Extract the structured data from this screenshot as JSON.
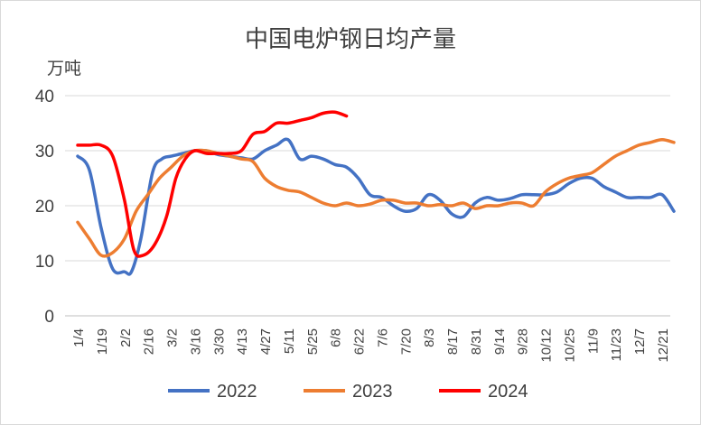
{
  "chart_data": {
    "type": "line",
    "title": "中国电炉钢日均产量",
    "ylabel": "万吨",
    "xlabel": "",
    "ylim": [
      0,
      40
    ],
    "yticks": [
      0,
      10,
      20,
      30,
      40
    ],
    "grid": "horizontal",
    "legend_position": "bottom",
    "categories": [
      "1/4",
      "1/19",
      "2/2",
      "2/16",
      "3/2",
      "3/16",
      "3/30",
      "4/13",
      "4/27",
      "5/11",
      "5/25",
      "6/8",
      "6/22",
      "7/6",
      "7/20",
      "8/3",
      "8/17",
      "8/31",
      "9/14",
      "9/28",
      "10/12",
      "10/25",
      "11/9",
      "11/23",
      "12/7",
      "12/21"
    ],
    "series": [
      {
        "name": "2022",
        "color": "#4472C4",
        "points": [
          [
            0,
            29
          ],
          [
            0.5,
            26.5
          ],
          [
            1,
            16
          ],
          [
            1.5,
            8.5
          ],
          [
            2,
            8
          ],
          [
            2.3,
            8
          ],
          [
            2.7,
            14
          ],
          [
            3.2,
            26
          ],
          [
            3.6,
            28.5
          ],
          [
            4,
            29
          ],
          [
            4.5,
            29.5
          ],
          [
            5,
            30
          ],
          [
            5.5,
            30
          ],
          [
            6,
            29.3
          ],
          [
            6.5,
            29
          ],
          [
            7,
            28.7
          ],
          [
            7.5,
            28.5
          ],
          [
            8,
            30
          ],
          [
            8.5,
            31
          ],
          [
            9,
            32
          ],
          [
            9.5,
            28.5
          ],
          [
            10,
            29
          ],
          [
            10.5,
            28.5
          ],
          [
            11,
            27.5
          ],
          [
            11.5,
            27
          ],
          [
            12,
            25
          ],
          [
            12.5,
            22
          ],
          [
            13,
            21.5
          ],
          [
            13.5,
            20
          ],
          [
            14,
            19
          ],
          [
            14.5,
            19.5
          ],
          [
            15,
            22
          ],
          [
            15.5,
            21
          ],
          [
            16,
            18.5
          ],
          [
            16.5,
            18
          ],
          [
            17,
            20.5
          ],
          [
            17.5,
            21.5
          ],
          [
            18,
            21
          ],
          [
            18.5,
            21.3
          ],
          [
            19,
            22
          ],
          [
            19.5,
            22
          ],
          [
            20,
            22
          ],
          [
            20.5,
            22.5
          ],
          [
            21,
            24
          ],
          [
            21.5,
            25
          ],
          [
            22,
            25
          ],
          [
            22.5,
            23.5
          ],
          [
            23,
            22.5
          ],
          [
            23.5,
            21.5
          ],
          [
            24,
            21.5
          ],
          [
            24.5,
            21.5
          ],
          [
            25,
            22
          ],
          [
            25.5,
            19
          ]
        ]
      },
      {
        "name": "2023",
        "color": "#ED7D31",
        "points": [
          [
            0,
            17
          ],
          [
            0.5,
            14
          ],
          [
            1,
            11
          ],
          [
            1.5,
            11.5
          ],
          [
            2,
            14
          ],
          [
            2.5,
            19
          ],
          [
            3,
            22
          ],
          [
            3.5,
            25
          ],
          [
            4,
            27
          ],
          [
            4.5,
            29
          ],
          [
            5,
            30
          ],
          [
            5.5,
            30
          ],
          [
            6,
            29.5
          ],
          [
            6.5,
            29
          ],
          [
            7,
            28.5
          ],
          [
            7.5,
            28
          ],
          [
            8,
            25
          ],
          [
            8.5,
            23.5
          ],
          [
            9,
            22.8
          ],
          [
            9.5,
            22.5
          ],
          [
            10,
            21.5
          ],
          [
            10.5,
            20.5
          ],
          [
            11,
            20
          ],
          [
            11.5,
            20.5
          ],
          [
            12,
            20
          ],
          [
            12.5,
            20.3
          ],
          [
            13,
            21
          ],
          [
            13.5,
            21
          ],
          [
            14,
            20.5
          ],
          [
            14.5,
            20.5
          ],
          [
            15,
            20
          ],
          [
            15.5,
            20.2
          ],
          [
            16,
            20
          ],
          [
            16.5,
            20.5
          ],
          [
            17,
            19.5
          ],
          [
            17.5,
            20
          ],
          [
            18,
            20
          ],
          [
            18.5,
            20.5
          ],
          [
            19,
            20.5
          ],
          [
            19.5,
            20
          ],
          [
            20,
            22.5
          ],
          [
            20.5,
            24
          ],
          [
            21,
            25
          ],
          [
            21.5,
            25.5
          ],
          [
            22,
            26
          ],
          [
            22.5,
            27.5
          ],
          [
            23,
            29
          ],
          [
            23.5,
            30
          ],
          [
            24,
            31
          ],
          [
            24.5,
            31.5
          ],
          [
            25,
            32
          ],
          [
            25.5,
            31.5
          ]
        ]
      },
      {
        "name": "2024",
        "color": "#FF0000",
        "points": [
          [
            0,
            31
          ],
          [
            0.5,
            31
          ],
          [
            1,
            31
          ],
          [
            1.5,
            29
          ],
          [
            2,
            21
          ],
          [
            2.4,
            12
          ],
          [
            2.8,
            11
          ],
          [
            3.3,
            13
          ],
          [
            3.8,
            18
          ],
          [
            4.2,
            25
          ],
          [
            4.6,
            28.5
          ],
          [
            5,
            30
          ],
          [
            5.5,
            29.5
          ],
          [
            6,
            29.5
          ],
          [
            6.5,
            29.5
          ],
          [
            7,
            30
          ],
          [
            7.5,
            33
          ],
          [
            8,
            33.5
          ],
          [
            8.5,
            35
          ],
          [
            9,
            35
          ],
          [
            9.5,
            35.5
          ],
          [
            10,
            36
          ],
          [
            10.5,
            36.8
          ],
          [
            11,
            37
          ],
          [
            11.5,
            36.3
          ]
        ]
      }
    ]
  }
}
